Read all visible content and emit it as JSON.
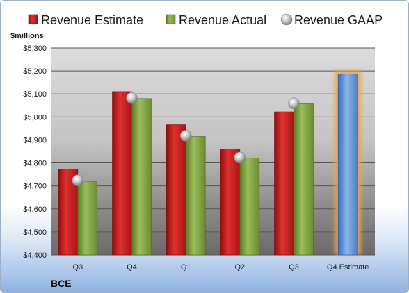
{
  "chart_data": {
    "type": "bar",
    "unit_label": "$millions",
    "company": "BCE",
    "categories": [
      "Q3",
      "Q4",
      "Q1",
      "Q2",
      "Q3",
      "Q4 Estimate"
    ],
    "series": [
      {
        "name": "Revenue Estimate",
        "color": "#cc1f1f",
        "values": [
          4773,
          5110,
          4966,
          4860,
          5022,
          null
        ]
      },
      {
        "name": "Revenue Actual",
        "color": "#7e9f3e",
        "values": [
          4720,
          5080,
          4915,
          4821,
          5057,
          null
        ]
      },
      {
        "name": "Revenue GAAP",
        "color": "#b8b8b8",
        "type": "marker",
        "values": [
          4724,
          5082,
          4918,
          4823,
          5059,
          null
        ]
      },
      {
        "name": "Q4 Estimate",
        "color": "#5b8fd6",
        "values": [
          null,
          null,
          null,
          null,
          null,
          5186
        ]
      }
    ],
    "ylim": [
      4400,
      5300
    ],
    "yticks": [
      "$4,400",
      "$4,500",
      "$4,600",
      "$4,700",
      "$4,800",
      "$4,900",
      "$5,000",
      "$5,100",
      "$5,200",
      "$5,300"
    ],
    "ytick_values": [
      4400,
      4500,
      4600,
      4700,
      4800,
      4900,
      5000,
      5100,
      5200,
      5300
    ],
    "grid": true,
    "legend_position": "top"
  }
}
